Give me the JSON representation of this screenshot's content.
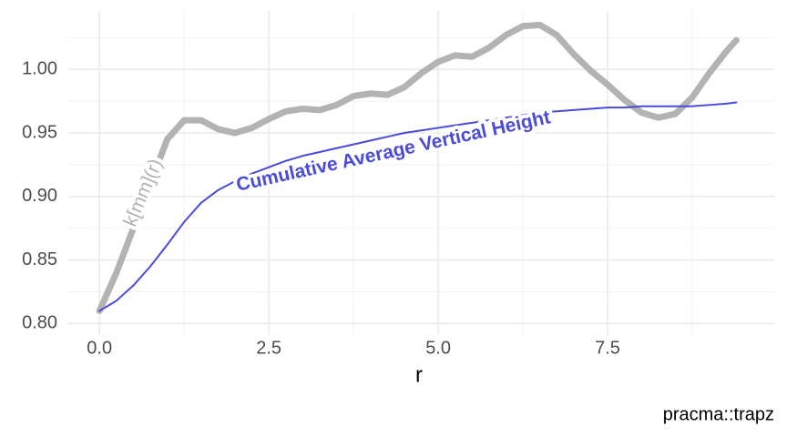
{
  "chart_data": {
    "type": "line",
    "x_label": "r",
    "caption": "pracma::trapz",
    "x": [
      0,
      0.25,
      0.5,
      0.75,
      1,
      1.25,
      1.5,
      1.75,
      2,
      2.25,
      2.5,
      2.75,
      3,
      3.25,
      3.5,
      3.75,
      4,
      4.25,
      4.5,
      4.75,
      5,
      5.25,
      5.5,
      5.75,
      6,
      6.25,
      6.5,
      6.75,
      7,
      7.25,
      7.5,
      7.75,
      8,
      8.25,
      8.5,
      8.75,
      9,
      9.25,
      9.4
    ],
    "series": [
      {
        "name": "k[mm](r)",
        "color": "#b3b3b3",
        "linewidth": 7,
        "values": [
          0.81,
          0.84,
          0.875,
          0.91,
          0.945,
          0.96,
          0.96,
          0.953,
          0.95,
          0.954,
          0.961,
          0.967,
          0.969,
          0.968,
          0.972,
          0.979,
          0.981,
          0.98,
          0.986,
          0.997,
          1.006,
          1.011,
          1.01,
          1.017,
          1.027,
          1.034,
          1.035,
          1.027,
          1.012,
          0.999,
          0.988,
          0.976,
          0.966,
          0.962,
          0.965,
          0.978,
          0.997,
          1.014,
          1.023
        ]
      },
      {
        "name": "Cumulative Average Vertical Height",
        "color": "#4b4bd9",
        "linewidth": 2,
        "values": [
          0.81,
          0.818,
          0.83,
          0.845,
          0.862,
          0.88,
          0.895,
          0.905,
          0.912,
          0.918,
          0.923,
          0.928,
          0.932,
          0.935,
          0.938,
          0.941,
          0.944,
          0.947,
          0.95,
          0.952,
          0.954,
          0.956,
          0.958,
          0.96,
          0.962,
          0.964,
          0.966,
          0.967,
          0.968,
          0.969,
          0.97,
          0.97,
          0.971,
          0.971,
          0.971,
          0.971,
          0.972,
          0.973,
          0.974
        ]
      }
    ],
    "xlim": [
      -0.46,
      9.96
    ],
    "ylim": [
      0.791,
      1.046
    ],
    "xticks": [
      {
        "value": 0,
        "label": "0.0"
      },
      {
        "value": 2.5,
        "label": "2.5"
      },
      {
        "value": 5,
        "label": "5.0"
      },
      {
        "value": 7.5,
        "label": "7.5"
      }
    ],
    "yticks": [
      {
        "value": 0.8,
        "label": "0.80"
      },
      {
        "value": 0.85,
        "label": "0.85"
      },
      {
        "value": 0.9,
        "label": "0.90"
      },
      {
        "value": 0.95,
        "label": "0.95"
      },
      {
        "value": 1,
        "label": "1.00"
      }
    ],
    "x_minor_ticks": [
      1.25,
      3.75,
      6.25,
      8.75
    ],
    "y_minor_ticks": [
      0.825,
      0.875,
      0.925,
      0.975,
      1.025
    ],
    "grid": true
  }
}
